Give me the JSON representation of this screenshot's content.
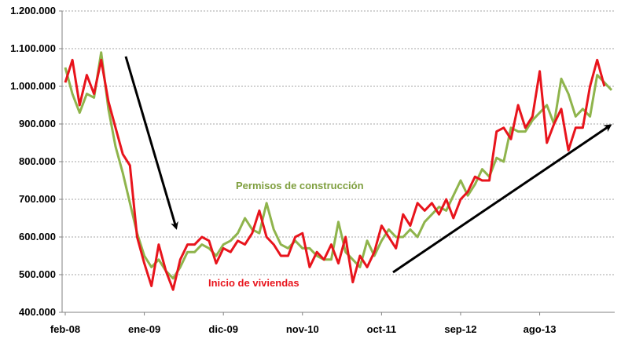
{
  "chart_data": {
    "type": "line",
    "title": "",
    "xlabel": "",
    "ylabel": "",
    "ylim": [
      400000,
      1200000
    ],
    "y_ticks": [
      "400.000",
      "500.000",
      "600.000",
      "700.000",
      "800.000",
      "900.000",
      "1.000.000",
      "1.100.000",
      "1.200.000"
    ],
    "x_ticks": [
      "feb-08",
      "ene-09",
      "dic-09",
      "nov-10",
      "oct-11",
      "sep-12",
      "ago-13"
    ],
    "grid": true,
    "legend": "none",
    "colors": {
      "permits": "#8fb44c",
      "starts": "#e8141c",
      "arrow": "#000000",
      "axis": "#808080",
      "grid": "#a6a6a6"
    },
    "annotations": {
      "permits_label": "Permisos de construcción",
      "starts_label": "Inicio de viviendas"
    },
    "series": [
      {
        "name": "Permisos de construcción",
        "values": [
          1050000,
          980000,
          930000,
          980000,
          970000,
          1090000,
          940000,
          840000,
          770000,
          690000,
          610000,
          550000,
          520000,
          540000,
          510000,
          490000,
          520000,
          560000,
          560000,
          580000,
          570000,
          550000,
          580000,
          590000,
          610000,
          650000,
          620000,
          610000,
          690000,
          620000,
          580000,
          570000,
          590000,
          570000,
          570000,
          550000,
          540000,
          540000,
          640000,
          560000,
          540000,
          520000,
          590000,
          550000,
          590000,
          620000,
          600000,
          600000,
          620000,
          600000,
          640000,
          660000,
          680000,
          670000,
          710000,
          750000,
          710000,
          740000,
          780000,
          760000,
          810000,
          800000,
          890000,
          880000,
          880000,
          910000,
          930000,
          950000,
          900000,
          1020000,
          980000,
          920000,
          940000,
          920000,
          1030000,
          1010000,
          990000
        ]
      },
      {
        "name": "Inicio de viviendas",
        "values": [
          1010000,
          1070000,
          950000,
          1030000,
          980000,
          1070000,
          960000,
          890000,
          820000,
          790000,
          600000,
          530000,
          470000,
          580000,
          510000,
          460000,
          540000,
          580000,
          580000,
          600000,
          590000,
          530000,
          570000,
          560000,
          590000,
          580000,
          610000,
          670000,
          600000,
          580000,
          550000,
          550000,
          600000,
          610000,
          520000,
          560000,
          540000,
          580000,
          530000,
          600000,
          480000,
          550000,
          520000,
          560000,
          630000,
          600000,
          570000,
          660000,
          630000,
          690000,
          670000,
          690000,
          660000,
          700000,
          650000,
          700000,
          720000,
          760000,
          750000,
          750000,
          880000,
          890000,
          860000,
          950000,
          890000,
          920000,
          1040000,
          850000,
          900000,
          940000,
          830000,
          890000,
          890000,
          1000000,
          1070000,
          1000000
        ]
      }
    ]
  }
}
